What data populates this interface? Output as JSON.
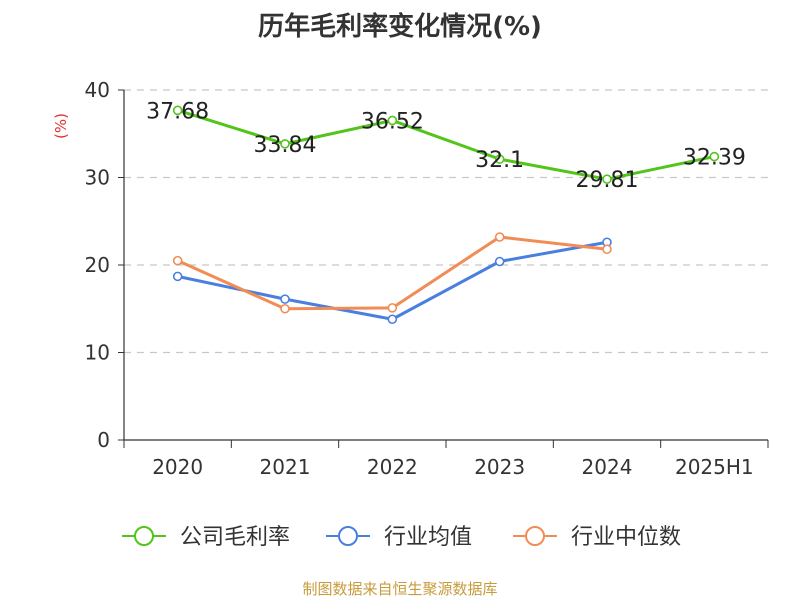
{
  "source": "制图数据来自恒生聚源数据库",
  "chart_data": {
    "type": "line",
    "title": "历年毛利率变化情况(%)",
    "ylabel": "(%)",
    "xlabel": "",
    "categories": [
      "2020",
      "2021",
      "2022",
      "2023",
      "2024",
      "2025H1"
    ],
    "ylim": [
      0,
      40
    ],
    "yticks": [
      0,
      10,
      20,
      30,
      40
    ],
    "grid": true,
    "legend_position": "bottom",
    "series": [
      {
        "name": "公司毛利率",
        "color": "#52c41a",
        "values": [
          37.68,
          33.84,
          36.52,
          32.1,
          29.81,
          32.39
        ],
        "labels": [
          "37.68",
          "33.84",
          "36.52",
          "32.1",
          "29.81",
          "32.39"
        ]
      },
      {
        "name": "行业均值",
        "color": "#4a7fe0",
        "values": [
          18.7,
          16.1,
          13.8,
          20.4,
          22.6,
          null
        ]
      },
      {
        "name": "行业中位数",
        "color": "#f28c55",
        "values": [
          20.5,
          15.0,
          15.1,
          23.2,
          21.8,
          null
        ]
      }
    ]
  }
}
